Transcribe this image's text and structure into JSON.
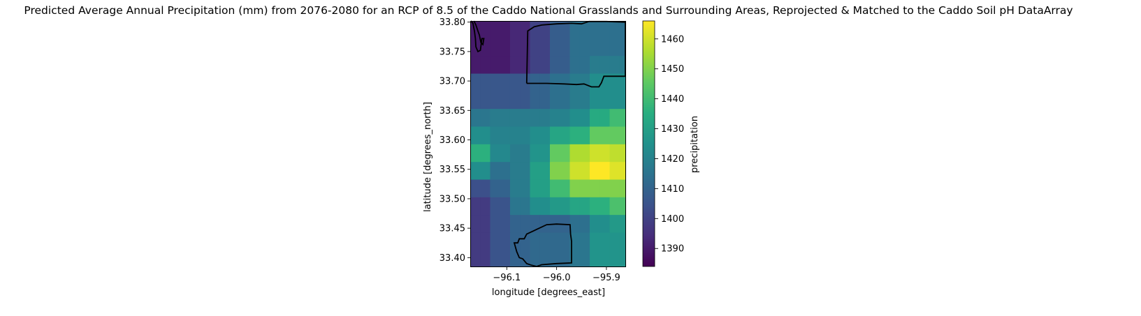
{
  "chart_data": {
    "type": "heatmap",
    "title": "Predicted Average Annual Precipitation (mm) from 2076-2080 for an RCP of 8.5 of the Caddo National Grasslands and Surrounding Areas, Reprojected & Matched to the Caddo Soil pH DataArray",
    "xlabel": "longitude [degrees_east]",
    "ylabel": "latitude [degrees_north]",
    "colorbar_label": "precipitation",
    "colormap": "viridis",
    "vmin": 1384,
    "vmax": 1466,
    "xlim": [
      -96.172,
      -95.862
    ],
    "ylim": [
      33.385,
      33.802
    ],
    "x_ticks": [
      -96.1,
      -96.0,
      -95.9
    ],
    "x_tick_labels": [
      "−96.1",
      "−96.0",
      "−95.9"
    ],
    "y_ticks": [
      33.4,
      33.45,
      33.5,
      33.55,
      33.6,
      33.65,
      33.7,
      33.75,
      33.8
    ],
    "y_tick_labels": [
      "33.40",
      "33.45",
      "33.50",
      "33.55",
      "33.60",
      "33.65",
      "33.70",
      "33.75",
      "33.80"
    ],
    "colorbar_ticks": [
      1390,
      1400,
      1410,
      1420,
      1430,
      1440,
      1450,
      1460
    ],
    "colorbar_tick_labels": [
      "1390",
      "1400",
      "1410",
      "1420",
      "1430",
      "1440",
      "1450",
      "1460"
    ],
    "cells": {
      "note_rows": "top to bottom",
      "row_lat_edges": [
        33.802,
        33.7725,
        33.7425,
        33.7125,
        33.6825,
        33.6525,
        33.6225,
        33.5925,
        33.5625,
        33.5325,
        33.5025,
        33.4725,
        33.4425,
        33.4125,
        33.385
      ],
      "col_lon_edges": [
        -96.172,
        -96.1535,
        -96.1335,
        -96.1135,
        -96.0935,
        -96.0735,
        -96.0535,
        -96.0335,
        -96.0135,
        -95.9935,
        -95.9735,
        -95.9535,
        -95.9335,
        -95.9135,
        -95.8935,
        -95.8735,
        -95.862
      ],
      "values": [
        [
          1390,
          1390,
          1390,
          1390,
          1393,
          1393,
          1400,
          1400,
          1408,
          1408,
          1414,
          1414,
          1414,
          1414,
          1414,
          1414
        ],
        [
          1390,
          1390,
          1390,
          1390,
          1393,
          1393,
          1400,
          1400,
          1408,
          1408,
          1414,
          1414,
          1418,
          1418,
          1418,
          1418
        ],
        [
          1406,
          1406,
          1406,
          1406,
          1406,
          1406,
          1410,
          1410,
          1414,
          1414,
          1418,
          1418,
          1424,
          1424,
          1424,
          1424
        ],
        [
          1416,
          1416,
          1418,
          1418,
          1418,
          1418,
          1418,
          1418,
          1420,
          1420,
          1424,
          1424,
          1434,
          1434,
          1440,
          1440
        ],
        [
          1424,
          1424,
          1420,
          1420,
          1420,
          1420,
          1424,
          1424,
          1432,
          1432,
          1436,
          1436,
          1446,
          1446,
          1446,
          1446
        ],
        [
          1436,
          1436,
          1422,
          1422,
          1418,
          1418,
          1426,
          1426,
          1446,
          1446,
          1456,
          1456,
          1460,
          1460,
          1458,
          1458
        ],
        [
          1424,
          1424,
          1414,
          1414,
          1418,
          1418,
          1430,
          1430,
          1450,
          1450,
          1460,
          1460,
          1466,
          1466,
          1462,
          1462
        ],
        [
          1404,
          1404,
          1410,
          1410,
          1418,
          1418,
          1430,
          1430,
          1440,
          1440,
          1450,
          1450,
          1450,
          1450,
          1450,
          1450
        ],
        [
          1398,
          1398,
          1405,
          1405,
          1416,
          1416,
          1424,
          1424,
          1428,
          1428,
          1432,
          1432,
          1436,
          1436,
          1442,
          1442
        ],
        [
          1398,
          1398,
          1405,
          1405,
          1410,
          1410,
          1410,
          1410,
          1410,
          1410,
          1414,
          1414,
          1424,
          1424,
          1428,
          1428
        ],
        [
          1398,
          1398,
          1405,
          1405,
          1410,
          1410,
          1412,
          1412,
          1412,
          1412,
          1416,
          1416,
          1426,
          1426,
          1426,
          1426
        ]
      ],
      "row_spans": [
        [
          0,
          2
        ],
        [
          2,
          3
        ],
        [
          3,
          5
        ],
        [
          5,
          6
        ],
        [
          6,
          7
        ],
        [
          7,
          8
        ],
        [
          8,
          9
        ],
        [
          9,
          10
        ],
        [
          10,
          11
        ],
        [
          11,
          12
        ],
        [
          12,
          14
        ]
      ]
    },
    "boundaries": [
      {
        "name": "north-unit",
        "points": [
          [
            -96.06,
            33.696
          ],
          [
            -96.058,
            33.785
          ],
          [
            -96.045,
            33.792
          ],
          [
            -96.03,
            33.795
          ],
          [
            -96.0,
            33.797
          ],
          [
            -95.97,
            33.798
          ],
          [
            -95.95,
            33.797
          ],
          [
            -95.935,
            33.801
          ],
          [
            -95.9,
            33.801
          ],
          [
            -95.865,
            33.8
          ],
          [
            -95.862,
            33.8
          ],
          [
            -95.862,
            33.708
          ],
          [
            -95.905,
            33.708
          ],
          [
            -95.91,
            33.697
          ],
          [
            -95.915,
            33.69
          ],
          [
            -95.93,
            33.69
          ],
          [
            -95.945,
            33.695
          ],
          [
            -95.96,
            33.694
          ],
          [
            -95.985,
            33.695
          ],
          [
            -96.02,
            33.696
          ],
          [
            -96.06,
            33.696
          ]
        ]
      },
      {
        "name": "northwest-corner",
        "points": [
          [
            -96.172,
            33.802
          ],
          [
            -96.168,
            33.798
          ],
          [
            -96.165,
            33.785
          ],
          [
            -96.163,
            33.772
          ],
          [
            -96.162,
            33.758
          ],
          [
            -96.158,
            33.75
          ],
          [
            -96.153,
            33.752
          ],
          [
            -96.15,
            33.772
          ],
          [
            -96.146,
            33.772
          ],
          [
            -96.148,
            33.762
          ],
          [
            -96.152,
            33.765
          ],
          [
            -96.155,
            33.778
          ],
          [
            -96.158,
            33.785
          ],
          [
            -96.162,
            33.795
          ],
          [
            -96.166,
            33.802
          ]
        ]
      },
      {
        "name": "south-unit",
        "points": [
          [
            -96.04,
            33.385
          ],
          [
            -96.03,
            33.388
          ],
          [
            -96.0,
            33.39
          ],
          [
            -95.97,
            33.391
          ],
          [
            -95.97,
            33.428
          ],
          [
            -95.972,
            33.44
          ],
          [
            -95.973,
            33.456
          ],
          [
            -96.0,
            33.457
          ],
          [
            -96.02,
            33.456
          ],
          [
            -96.04,
            33.448
          ],
          [
            -96.06,
            33.44
          ],
          [
            -96.065,
            33.432
          ],
          [
            -96.075,
            33.432
          ],
          [
            -96.078,
            33.425
          ],
          [
            -96.085,
            33.425
          ],
          [
            -96.08,
            33.41
          ],
          [
            -96.075,
            33.4
          ],
          [
            -96.068,
            33.398
          ],
          [
            -96.06,
            33.39
          ],
          [
            -96.05,
            33.387
          ],
          [
            -96.04,
            33.385
          ]
        ]
      }
    ]
  }
}
